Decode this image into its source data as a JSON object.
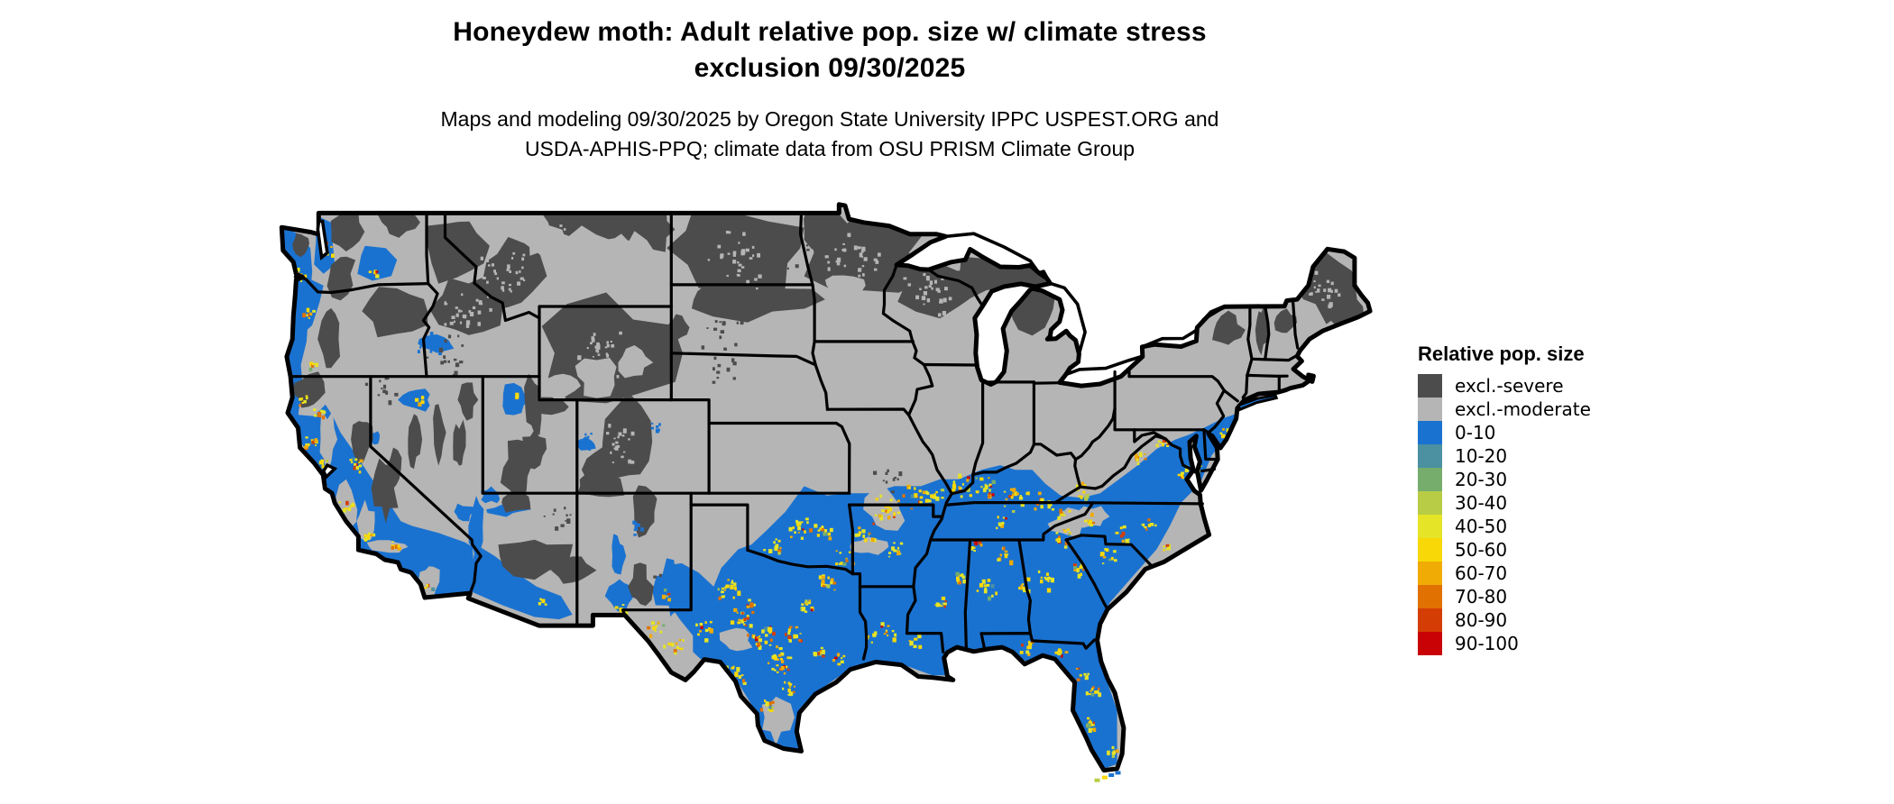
{
  "title": {
    "line1": "Honeydew moth: Adult relative pop. size w/ climate stress",
    "line2": "exclusion 09/30/2025"
  },
  "subtitle": {
    "line1": "Maps and modeling 09/30/2025 by Oregon State University IPPC USPEST.ORG and",
    "line2": "USDA-APHIS-PPQ; climate data from OSU PRISM Climate Group"
  },
  "legend": {
    "title": "Relative pop. size",
    "items": [
      {
        "key": "severe",
        "label": "excl.-severe",
        "color": "#4c4c4c"
      },
      {
        "key": "moderate",
        "label": "excl.-moderate",
        "color": "#b5b5b5"
      },
      {
        "key": "c0_10",
        "label": "0-10",
        "color": "#1a72d0"
      },
      {
        "key": "c10_20",
        "label": "10-20",
        "color": "#4b91a2"
      },
      {
        "key": "c20_30",
        "label": "20-30",
        "color": "#77ad6c"
      },
      {
        "key": "c30_40",
        "label": "30-40",
        "color": "#b8cd45"
      },
      {
        "key": "c40_50",
        "label": "40-50",
        "color": "#e5e427"
      },
      {
        "key": "c50_60",
        "label": "50-60",
        "color": "#f8d807"
      },
      {
        "key": "c60_70",
        "label": "60-70",
        "color": "#f0ab04"
      },
      {
        "key": "c70_80",
        "label": "70-80",
        "color": "#e17201"
      },
      {
        "key": "c80_90",
        "label": "80-90",
        "color": "#d43e04"
      },
      {
        "key": "c90_100",
        "label": "90-100",
        "color": "#c90305"
      }
    ]
  },
  "palette": {
    "severe": "#4c4c4c",
    "moderate": "#b5b5b5",
    "c0_10": "#1a72d0",
    "c10_20": "#4b91a2",
    "c20_30": "#77ad6c",
    "c30_40": "#b8cd45",
    "c40_50": "#e5e427",
    "c50_60": "#f8d807",
    "c60_70": "#f0ab04",
    "c70_80": "#e17201",
    "c80_90": "#d43e04",
    "c90_100": "#c90305",
    "border": "#000000",
    "background": "#ffffff"
  },
  "map": {
    "region": "Contiguous United States",
    "date_shown": "09/30/2025"
  }
}
